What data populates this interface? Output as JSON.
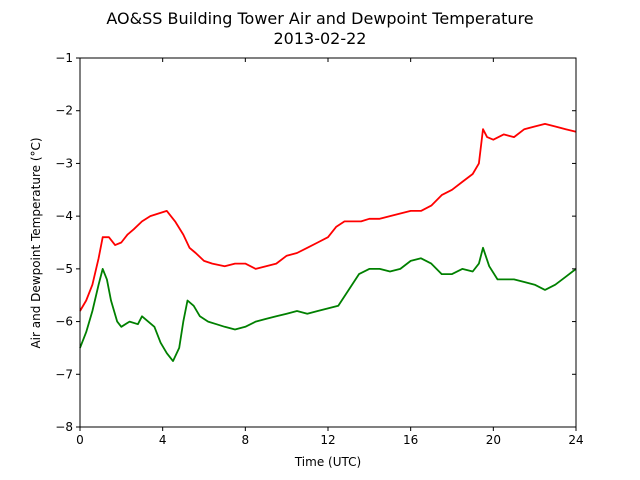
{
  "chart_data": {
    "type": "line",
    "title": "AO&SS Building Tower Air and Dewpoint Temperature",
    "subtitle": "2013-02-22",
    "xlabel": "Time (UTC)",
    "ylabel": "Air and Dewpoint Temperature (°C)",
    "xlim": [
      0,
      24
    ],
    "ylim": [
      -8,
      -1
    ],
    "xticks": [
      0,
      4,
      8,
      12,
      16,
      20,
      24
    ],
    "yticks": [
      -8,
      -7,
      -6,
      -5,
      -4,
      -3,
      -2,
      -1
    ],
    "ytick_labels": [
      "−8",
      "−7",
      "−6",
      "−5",
      "−4",
      "−3",
      "−2",
      "−1"
    ],
    "grid": false,
    "series": [
      {
        "color": "#ff0000",
        "x": [
          0,
          0.3,
          0.6,
          0.9,
          1.1,
          1.4,
          1.7,
          2.0,
          2.3,
          2.6,
          3.0,
          3.4,
          3.8,
          4.2,
          4.6,
          5.0,
          5.3,
          5.6,
          6.0,
          6.4,
          7.0,
          7.5,
          8.0,
          8.5,
          9.0,
          9.5,
          10.0,
          10.5,
          11.0,
          11.5,
          12.0,
          12.4,
          12.8,
          13.2,
          13.6,
          14.0,
          14.5,
          15.0,
          15.5,
          16.0,
          16.5,
          17.0,
          17.5,
          18.0,
          18.5,
          19.0,
          19.3,
          19.5,
          19.7,
          20.0,
          20.5,
          21.0,
          21.5,
          22.0,
          22.5,
          23.0,
          23.5,
          24.0
        ],
        "values": [
          -5.8,
          -5.6,
          -5.3,
          -4.8,
          -4.4,
          -4.4,
          -4.55,
          -4.5,
          -4.35,
          -4.25,
          -4.1,
          -4.0,
          -3.95,
          -3.9,
          -4.1,
          -4.35,
          -4.6,
          -4.7,
          -4.85,
          -4.9,
          -4.95,
          -4.9,
          -4.9,
          -5.0,
          -4.95,
          -4.9,
          -4.75,
          -4.7,
          -4.6,
          -4.5,
          -4.4,
          -4.2,
          -4.1,
          -4.1,
          -4.1,
          -4.05,
          -4.05,
          -4.0,
          -3.95,
          -3.9,
          -3.9,
          -3.8,
          -3.6,
          -3.5,
          -3.35,
          -3.2,
          -3.0,
          -2.35,
          -2.5,
          -2.55,
          -2.45,
          -2.5,
          -2.35,
          -2.3,
          -2.25,
          -2.3,
          -2.35,
          -2.4
        ]
      },
      {
        "color": "#008000",
        "x": [
          0,
          0.3,
          0.6,
          0.9,
          1.1,
          1.3,
          1.5,
          1.8,
          2.0,
          2.4,
          2.8,
          3.0,
          3.3,
          3.6,
          3.9,
          4.2,
          4.5,
          4.8,
          5.0,
          5.2,
          5.5,
          5.8,
          6.2,
          6.6,
          7.0,
          7.5,
          8.0,
          8.5,
          9.0,
          9.5,
          10.0,
          10.5,
          11.0,
          11.5,
          12.0,
          12.5,
          13.0,
          13.5,
          14.0,
          14.5,
          15.0,
          15.5,
          16.0,
          16.5,
          17.0,
          17.5,
          18.0,
          18.5,
          19.0,
          19.3,
          19.5,
          19.8,
          20.2,
          20.6,
          21.0,
          21.5,
          22.0,
          22.5,
          23.0,
          23.5,
          24.0
        ],
        "values": [
          -6.5,
          -6.2,
          -5.8,
          -5.3,
          -5.0,
          -5.2,
          -5.6,
          -6.0,
          -6.1,
          -6.0,
          -6.05,
          -5.9,
          -6.0,
          -6.1,
          -6.4,
          -6.6,
          -6.75,
          -6.5,
          -6.0,
          -5.6,
          -5.7,
          -5.9,
          -6.0,
          -6.05,
          -6.1,
          -6.15,
          -6.1,
          -6.0,
          -5.95,
          -5.9,
          -5.85,
          -5.8,
          -5.85,
          -5.8,
          -5.75,
          -5.7,
          -5.4,
          -5.1,
          -5.0,
          -5.0,
          -5.05,
          -5.0,
          -4.85,
          -4.8,
          -4.9,
          -5.1,
          -5.1,
          -5.0,
          -5.05,
          -4.9,
          -4.6,
          -4.95,
          -5.2,
          -5.2,
          -5.2,
          -5.25,
          -5.3,
          -5.4,
          -5.3,
          -5.15,
          -5.0
        ]
      }
    ]
  }
}
